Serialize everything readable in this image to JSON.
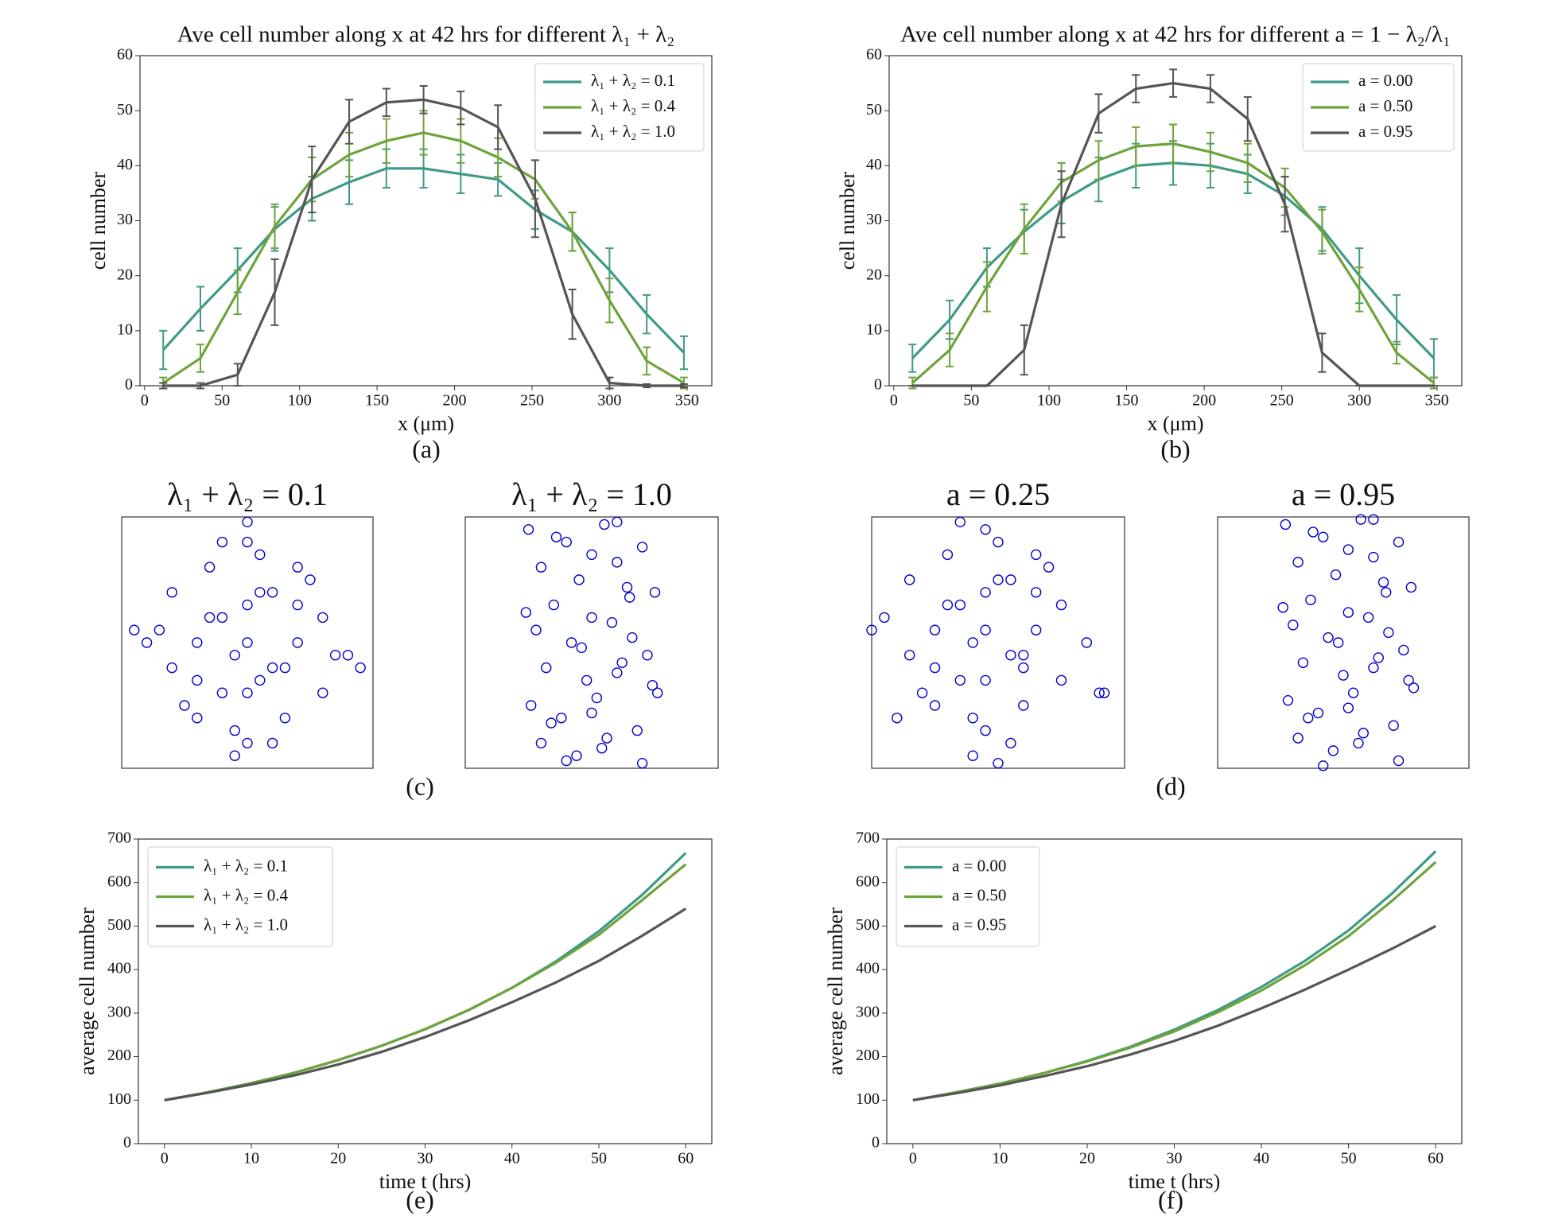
{
  "panel_labels": [
    "(a)",
    "(b)",
    "(c)",
    "(d)",
    "(e)",
    "(f)"
  ],
  "chart_data": [
    {
      "type": "line",
      "title": "Ave cell number along x at 42 hrs for different λ₁ + λ₂",
      "xlabel": "x (μm)",
      "ylabel": "cell number",
      "x": [
        12,
        36,
        60,
        84,
        108,
        132,
        156,
        180,
        204,
        228,
        252,
        276,
        300,
        324,
        348
      ],
      "xlim": [
        -3,
        366
      ],
      "ylim": [
        0,
        60
      ],
      "xticks": [
        0,
        50,
        100,
        150,
        200,
        250,
        300,
        350
      ],
      "yticks": [
        0,
        10,
        20,
        30,
        40,
        50,
        60
      ],
      "legend": "upper right",
      "series": [
        {
          "name": "λ₁ + λ₂ = 0.1",
          "color": "#3f9a86",
          "values": [
            6.5,
            14,
            21,
            28.5,
            34,
            37,
            39.5,
            39.5,
            38.5,
            37.5,
            32,
            28,
            21,
            13,
            6
          ],
          "errors": [
            3.5,
            4,
            4,
            4,
            4,
            4,
            3.5,
            3.5,
            3.5,
            3,
            3.5,
            3.5,
            4,
            3.5,
            3
          ]
        },
        {
          "name": "λ₁ + λ₂ = 0.4",
          "color": "#6fa33c",
          "values": [
            0.5,
            5,
            17,
            29,
            37.5,
            42,
            44.5,
            46,
            44.5,
            41.5,
            37.5,
            28,
            15.5,
            4.5,
            0.5
          ],
          "errors": [
            1,
            2.5,
            4,
            4,
            4,
            4,
            4,
            4,
            4,
            3.5,
            3.5,
            3.5,
            4,
            2.5,
            1
          ]
        },
        {
          "name": "λ₁ + λ₂ = 1.0",
          "color": "#555555",
          "values": [
            0,
            0,
            2,
            17,
            37.5,
            48,
            51.5,
            52,
            50.5,
            47,
            34,
            13,
            0.5,
            0,
            0
          ],
          "errors": [
            0.5,
            0.5,
            2,
            6,
            6,
            4,
            2.5,
            2.5,
            3,
            4,
            7,
            4.5,
            1,
            0.3,
            0.3
          ]
        }
      ]
    },
    {
      "type": "line",
      "title": "Ave cell number along x at 42 hrs for different a = 1 − λ₂/λ₁",
      "xlabel": "x (μm)",
      "ylabel": "cell number",
      "x": [
        12,
        36,
        60,
        84,
        108,
        132,
        156,
        180,
        204,
        228,
        252,
        276,
        300,
        324,
        348
      ],
      "xlim": [
        -3,
        366
      ],
      "ylim": [
        0,
        60
      ],
      "xticks": [
        0,
        50,
        100,
        150,
        200,
        250,
        300,
        350
      ],
      "yticks": [
        0,
        10,
        20,
        30,
        40,
        50,
        60
      ],
      "legend": "upper right",
      "series": [
        {
          "name": "a = 0.00",
          "color": "#3f9a86",
          "values": [
            5,
            12,
            21.5,
            28,
            33.5,
            37.5,
            40,
            40.5,
            40,
            38.5,
            34.5,
            28.5,
            20,
            12,
            5
          ],
          "errors": [
            2.5,
            3.5,
            3.5,
            4,
            4,
            4,
            4,
            4,
            4,
            3.5,
            3.5,
            4,
            5,
            4.5,
            3.5
          ]
        },
        {
          "name": "a = 0.50",
          "color": "#6fa33c",
          "values": [
            0.5,
            6.5,
            18,
            28.5,
            37,
            41,
            43.5,
            44,
            42.5,
            40.5,
            36,
            28,
            17.5,
            6,
            0.5
          ],
          "errors": [
            1,
            3,
            4.5,
            4.5,
            3.5,
            3.5,
            3.5,
            3.5,
            3.5,
            3.5,
            3.5,
            4,
            4,
            2,
            1
          ]
        },
        {
          "name": "a = 0.95",
          "color": "#555555",
          "values": [
            0,
            0,
            0,
            6.5,
            33,
            49.5,
            54,
            55,
            54,
            48.5,
            33,
            6,
            0,
            0,
            0
          ],
          "errors": [
            0,
            0,
            0,
            4.5,
            6,
            3.5,
            2.5,
            2.5,
            2.5,
            4,
            5,
            3.5,
            0,
            0,
            0
          ]
        }
      ]
    },
    {
      "type": "scatter",
      "title": "λ₁ + λ₂ = 0.1",
      "color": "#0000cc",
      "x": [
        0.5,
        0.3,
        0.7,
        0.4,
        0.6,
        0.2,
        0.8,
        0.5,
        0.35,
        0.65,
        0.45,
        0.55,
        0.25,
        0.75,
        0.15,
        0.85,
        0.5,
        0.4,
        0.6,
        0.3,
        0.7,
        0.1,
        0.9,
        0.5,
        0.45,
        0.55,
        0.35,
        0.65,
        0.2,
        0.8,
        0.5,
        0.4,
        0.6,
        0.3,
        0.7,
        0.05,
        0.95,
        0.5,
        0.45,
        0.55
      ],
      "y": [
        0.5,
        0.5,
        0.5,
        0.3,
        0.7,
        0.4,
        0.6,
        0.1,
        0.8,
        0.2,
        0.15,
        0.85,
        0.25,
        0.75,
        0.55,
        0.45,
        0.3,
        0.6,
        0.4,
        0.35,
        0.65,
        0.5,
        0.45,
        0.9,
        0.05,
        0.7,
        0.6,
        0.4,
        0.7,
        0.3,
        0.65,
        0.9,
        0.1,
        0.2,
        0.8,
        0.55,
        0.4,
        0.98,
        0.45,
        0.35
      ]
    },
    {
      "type": "scatter",
      "title": "λ₁ + λ₂ = 1.0",
      "color": "#0000cc",
      "x": [
        0.25,
        0.4,
        0.55,
        0.7,
        0.3,
        0.45,
        0.6,
        0.75,
        0.35,
        0.5,
        0.65,
        0.28,
        0.42,
        0.58,
        0.72,
        0.32,
        0.48,
        0.62,
        0.76,
        0.26,
        0.38,
        0.52,
        0.68,
        0.3,
        0.44,
        0.56,
        0.7,
        0.36,
        0.5,
        0.64,
        0.24,
        0.46,
        0.6,
        0.74,
        0.34,
        0.54,
        0.66,
        0.4,
        0.5,
        0.6
      ],
      "y": [
        0.95,
        0.9,
        0.97,
        0.88,
        0.8,
        0.75,
        0.82,
        0.7,
        0.65,
        0.6,
        0.68,
        0.55,
        0.5,
        0.58,
        0.45,
        0.4,
        0.35,
        0.42,
        0.3,
        0.25,
        0.2,
        0.28,
        0.15,
        0.1,
        0.05,
        0.12,
        0.02,
        0.92,
        0.85,
        0.72,
        0.62,
        0.48,
        0.38,
        0.33,
        0.18,
        0.08,
        0.52,
        0.03,
        0.22,
        0.98
      ]
    },
    {
      "type": "scatter",
      "title": "a = 0.25",
      "color": "#0000cc",
      "x": [
        0.45,
        0.25,
        0.65,
        0.35,
        0.55,
        0.15,
        0.75,
        0.45,
        0.3,
        0.6,
        0.4,
        0.5,
        0.2,
        0.7,
        0.05,
        0.85,
        0.45,
        0.35,
        0.55,
        0.25,
        0.65,
        0.0,
        0.9,
        0.45,
        0.4,
        0.5,
        0.3,
        0.6,
        0.15,
        0.75,
        0.45,
        0.35,
        0.55,
        0.25,
        0.65,
        0.1,
        0.92,
        0.5,
        0.4,
        0.6
      ],
      "y": [
        0.55,
        0.55,
        0.55,
        0.35,
        0.75,
        0.45,
        0.65,
        0.15,
        0.85,
        0.25,
        0.2,
        0.9,
        0.3,
        0.8,
        0.6,
        0.5,
        0.35,
        0.65,
        0.45,
        0.4,
        0.7,
        0.55,
        0.3,
        0.95,
        0.05,
        0.75,
        0.65,
        0.45,
        0.75,
        0.35,
        0.7,
        0.98,
        0.1,
        0.25,
        0.85,
        0.2,
        0.3,
        0.02,
        0.5,
        0.4
      ]
    },
    {
      "type": "scatter",
      "title": "a = 0.95",
      "color": "#0000cc",
      "x": [
        0.27,
        0.42,
        0.57,
        0.72,
        0.32,
        0.47,
        0.62,
        0.77,
        0.37,
        0.52,
        0.67,
        0.3,
        0.44,
        0.6,
        0.74,
        0.34,
        0.5,
        0.64,
        0.78,
        0.28,
        0.4,
        0.54,
        0.7,
        0.32,
        0.46,
        0.58,
        0.72,
        0.38,
        0.52,
        0.66,
        0.26,
        0.48,
        0.62,
        0.76,
        0.36,
        0.56,
        0.68,
        0.42,
        0.52,
        0.62
      ],
      "y": [
        0.97,
        0.92,
        0.99,
        0.9,
        0.82,
        0.77,
        0.84,
        0.72,
        0.67,
        0.62,
        0.7,
        0.57,
        0.52,
        0.6,
        0.47,
        0.42,
        0.37,
        0.44,
        0.32,
        0.27,
        0.22,
        0.3,
        0.17,
        0.12,
        0.07,
        0.14,
        0.03,
        0.94,
        0.87,
        0.74,
        0.64,
        0.5,
        0.4,
        0.35,
        0.2,
        0.1,
        0.54,
        0.01,
        0.24,
        0.99
      ]
    },
    {
      "type": "line",
      "xlabel": "time t (hrs)",
      "ylabel": "average cell number",
      "x": [
        0,
        5,
        10,
        15,
        20,
        25,
        30,
        35,
        40,
        45,
        50,
        55,
        60
      ],
      "xlim": [
        -3,
        63
      ],
      "ylim": [
        0,
        700
      ],
      "xticks": [
        0,
        10,
        20,
        30,
        40,
        50,
        60
      ],
      "yticks": [
        0,
        100,
        200,
        300,
        400,
        500,
        600,
        700
      ],
      "legend": "upper left",
      "series": [
        {
          "name": "λ₁ + λ₂ = 0.1",
          "color": "#3f9a86",
          "values": [
            100,
            118,
            139,
            163,
            192,
            225,
            263,
            307,
            358,
            418,
            488,
            572,
            668
          ]
        },
        {
          "name": "λ₁ + λ₂ = 0.4",
          "color": "#6fa33c",
          "values": [
            100,
            118,
            139,
            163,
            192,
            225,
            263,
            307,
            358,
            415,
            480,
            560,
            642
          ]
        },
        {
          "name": "λ₁ + λ₂ = 1.0",
          "color": "#555555",
          "values": [
            100,
            117,
            136,
            157,
            182,
            211,
            245,
            283,
            325,
            370,
            420,
            478,
            540
          ]
        }
      ]
    },
    {
      "type": "line",
      "xlabel": "time t (hrs)",
      "ylabel": "average cell number",
      "x": [
        0,
        5,
        10,
        15,
        20,
        25,
        30,
        35,
        40,
        45,
        50,
        55,
        60
      ],
      "xlim": [
        -3,
        63
      ],
      "ylim": [
        0,
        700
      ],
      "xticks": [
        0,
        10,
        20,
        30,
        40,
        50,
        60
      ],
      "yticks": [
        0,
        100,
        200,
        300,
        400,
        500,
        600,
        700
      ],
      "legend": "upper left",
      "series": [
        {
          "name": "a = 0.00",
          "color": "#3f9a86",
          "values": [
            100,
            118,
            138,
            162,
            190,
            223,
            262,
            307,
            360,
            420,
            490,
            575,
            672
          ]
        },
        {
          "name": "a = 0.50",
          "color": "#6fa33c",
          "values": [
            100,
            118,
            138,
            162,
            189,
            221,
            258,
            302,
            352,
            410,
            477,
            558,
            647
          ]
        },
        {
          "name": "a = 0.95",
          "color": "#555555",
          "values": [
            100,
            116,
            134,
            155,
            178,
            205,
            236,
            271,
            311,
            354,
            400,
            448,
            500
          ]
        }
      ]
    }
  ]
}
